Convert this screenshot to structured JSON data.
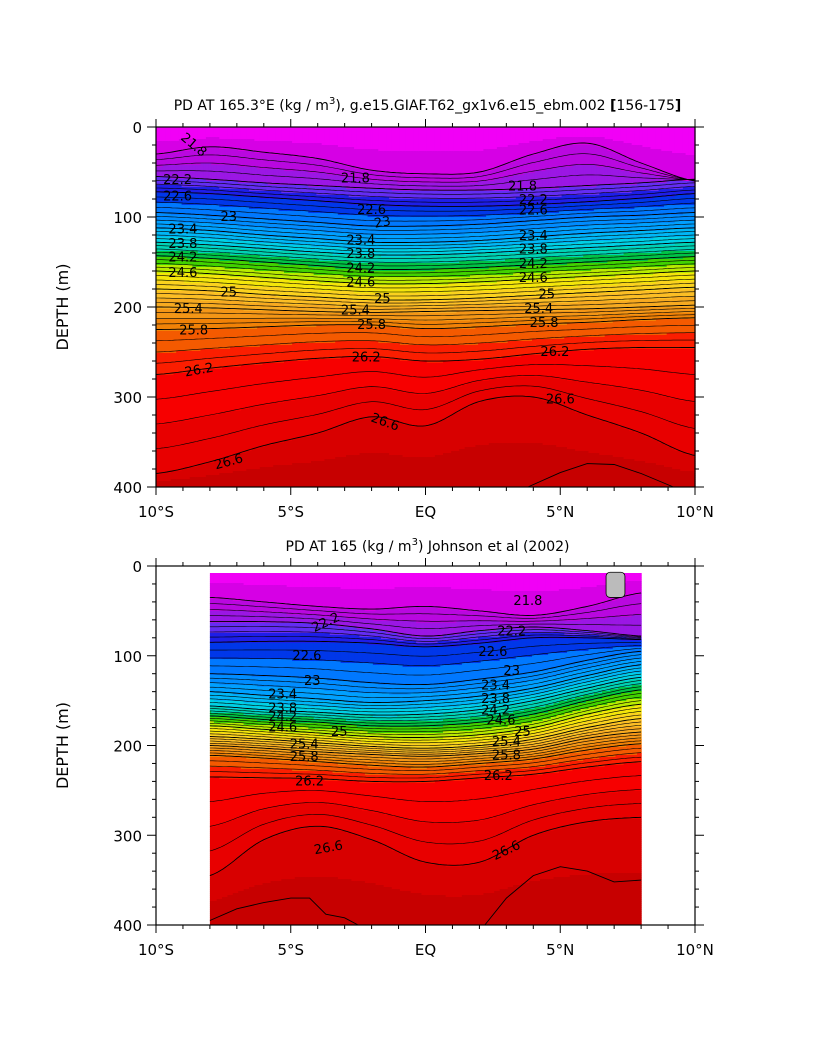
{
  "chart_data": [
    {
      "type": "heatmap",
      "variant": "filled-contour",
      "title": "PD AT 165.3°E (kg / m³), g.e15.GIAF.T62_gx1v6.e15_ebm.002 [156-175]",
      "title_parts": {
        "pre": "PD AT 165.3°E (kg / m",
        "sup": "3",
        "post": "), g.e15.GIAF.T62_gx1v6.e15_ebm.002 ",
        "range": "156-175"
      },
      "xlabel": "",
      "ylabel": "DEPTH (m)",
      "xlim": [
        -10,
        10
      ],
      "ylim": [
        400,
        0
      ],
      "y_inverted": true,
      "x_ticks": [
        {
          "v": -10,
          "label": "10°S"
        },
        {
          "v": -5,
          "label": "5°S"
        },
        {
          "v": 0,
          "label": "EQ"
        },
        {
          "v": 5,
          "label": "5°N"
        },
        {
          "v": 10,
          "label": "10°N"
        }
      ],
      "y_ticks": [
        {
          "v": 0,
          "label": "0"
        },
        {
          "v": 100,
          "label": "100"
        },
        {
          "v": 200,
          "label": "200"
        },
        {
          "v": 300,
          "label": "300"
        },
        {
          "v": 400,
          "label": "400"
        }
      ],
      "data_xrange": [
        -10,
        10
      ],
      "contour_interval": 0.2,
      "level_range": [
        21.4,
        27.0
      ],
      "profile_lat": [
        -10,
        -8,
        -6,
        -4,
        -2,
        0,
        2,
        4,
        6,
        8,
        10
      ],
      "profile_levels": [
        21.8,
        22.2,
        22.6,
        23.0,
        23.4,
        23.8,
        24.2,
        24.6,
        25.0,
        25.4,
        25.8,
        26.2,
        26.6
      ],
      "contour_depths": [
        [
          30,
          22,
          28,
          35,
          48,
          52,
          50,
          30,
          18,
          40,
          60
        ],
        [
          55,
          58,
          62,
          65,
          68,
          70,
          70,
          68,
          65,
          62,
          58
        ],
        [
          72,
          74,
          78,
          82,
          86,
          88,
          88,
          86,
          83,
          79,
          74
        ],
        [
          95,
          98,
          102,
          106,
          110,
          110,
          108,
          104,
          100,
          98,
          95
        ],
        [
          112,
          115,
          120,
          124,
          128,
          128,
          126,
          122,
          118,
          115,
          112
        ],
        [
          128,
          131,
          135,
          139,
          142,
          142,
          140,
          137,
          134,
          131,
          128
        ],
        [
          143,
          146,
          150,
          154,
          158,
          158,
          156,
          153,
          150,
          147,
          144
        ],
        [
          160,
          163,
          167,
          171,
          174,
          174,
          172,
          169,
          166,
          163,
          160
        ],
        [
          180,
          182,
          186,
          189,
          192,
          192,
          190,
          187,
          184,
          181,
          178
        ],
        [
          200,
          201,
          203,
          205,
          206,
          205,
          204,
          203,
          202,
          200,
          198
        ],
        [
          225,
          224,
          222,
          220,
          220,
          224,
          222,
          219,
          217,
          214,
          212
        ],
        [
          275,
          268,
          262,
          257,
          255,
          260,
          258,
          252,
          247,
          245,
          245
        ],
        [
          385,
          372,
          354,
          340,
          322,
          332,
          305,
          300,
          320,
          340,
          365
        ]
      ],
      "bottom_contour": {
        "level": 27.0,
        "lat": [
          3.8,
          5,
          6,
          7,
          8,
          9.2
        ],
        "depth": [
          400,
          384,
          374,
          375,
          385,
          400
        ]
      },
      "contour_labels": [
        {
          "text": "21.8",
          "lat": -8.6,
          "depth": 20,
          "rot": 40
        },
        {
          "text": "21.8",
          "lat": -2.6,
          "depth": 57,
          "rot": 0
        },
        {
          "text": "21.8",
          "lat": 3.6,
          "depth": 66,
          "rot": 0
        },
        {
          "text": "22.2",
          "lat": -9.2,
          "depth": 59,
          "rot": 0
        },
        {
          "text": "22.2",
          "lat": 4.0,
          "depth": 81,
          "rot": 0
        },
        {
          "text": "22.6",
          "lat": -9.2,
          "depth": 77,
          "rot": 0
        },
        {
          "text": "22.6",
          "lat": -2.0,
          "depth": 92,
          "rot": 0
        },
        {
          "text": "22.6",
          "lat": 4.0,
          "depth": 93,
          "rot": 0
        },
        {
          "text": "23",
          "lat": -7.3,
          "depth": 100,
          "rot": 0
        },
        {
          "text": "23",
          "lat": -1.6,
          "depth": 106,
          "rot": -10
        },
        {
          "text": "23.4",
          "lat": -9.0,
          "depth": 114,
          "rot": 0
        },
        {
          "text": "23.4",
          "lat": -2.4,
          "depth": 126,
          "rot": 0
        },
        {
          "text": "23.4",
          "lat": 4.0,
          "depth": 121,
          "rot": 0
        },
        {
          "text": "23.8",
          "lat": -9.0,
          "depth": 130,
          "rot": 0
        },
        {
          "text": "23.8",
          "lat": -2.4,
          "depth": 141,
          "rot": 0
        },
        {
          "text": "23.8",
          "lat": 4.0,
          "depth": 136,
          "rot": 0
        },
        {
          "text": "24.2",
          "lat": -9.0,
          "depth": 145,
          "rot": 0
        },
        {
          "text": "24.2",
          "lat": -2.4,
          "depth": 157,
          "rot": 0
        },
        {
          "text": "24.2",
          "lat": 4.0,
          "depth": 152,
          "rot": 0
        },
        {
          "text": "24.6",
          "lat": -9.0,
          "depth": 162,
          "rot": 0
        },
        {
          "text": "24.6",
          "lat": -2.4,
          "depth": 173,
          "rot": 0
        },
        {
          "text": "24.6",
          "lat": 4.0,
          "depth": 168,
          "rot": 0
        },
        {
          "text": "25",
          "lat": -7.3,
          "depth": 184,
          "rot": 0
        },
        {
          "text": "25",
          "lat": -1.6,
          "depth": 191,
          "rot": 0
        },
        {
          "text": "25",
          "lat": 4.5,
          "depth": 186,
          "rot": 0
        },
        {
          "text": "25.4",
          "lat": -8.8,
          "depth": 202,
          "rot": 0
        },
        {
          "text": "25.4",
          "lat": -2.6,
          "depth": 204,
          "rot": 0
        },
        {
          "text": "25.4",
          "lat": 4.2,
          "depth": 202,
          "rot": 0
        },
        {
          "text": "25.8",
          "lat": -8.6,
          "depth": 226,
          "rot": 0
        },
        {
          "text": "25.8",
          "lat": -2.0,
          "depth": 220,
          "rot": 0
        },
        {
          "text": "25.8",
          "lat": 4.4,
          "depth": 218,
          "rot": 0
        },
        {
          "text": "26.2",
          "lat": -8.4,
          "depth": 270,
          "rot": -10
        },
        {
          "text": "26.2",
          "lat": -2.2,
          "depth": 256,
          "rot": 0
        },
        {
          "text": "26.2",
          "lat": 4.8,
          "depth": 250,
          "rot": 0
        },
        {
          "text": "26.6",
          "lat": -7.3,
          "depth": 372,
          "rot": -15
        },
        {
          "text": "26.6",
          "lat": -1.5,
          "depth": 328,
          "rot": 20
        },
        {
          "text": "26.6",
          "lat": 5.0,
          "depth": 303,
          "rot": 0
        }
      ]
    },
    {
      "type": "heatmap",
      "variant": "filled-contour",
      "title": "PD AT 165 (kg / m³) Johnson et al (2002)",
      "title_parts": {
        "pre": "PD AT 165 (kg / m",
        "sup": "3",
        "post": ") Johnson et al (2002)",
        "range": ""
      },
      "xlabel": "",
      "ylabel": "DEPTH (m)",
      "xlim": [
        -10,
        10
      ],
      "ylim": [
        400,
        0
      ],
      "y_inverted": true,
      "x_ticks": [
        {
          "v": -10,
          "label": "10°S"
        },
        {
          "v": -5,
          "label": "5°S"
        },
        {
          "v": 0,
          "label": "EQ"
        },
        {
          "v": 5,
          "label": "5°N"
        },
        {
          "v": 10,
          "label": "10°N"
        }
      ],
      "y_ticks": [
        {
          "v": 0,
          "label": "0"
        },
        {
          "v": 100,
          "label": "100"
        },
        {
          "v": 200,
          "label": "200"
        },
        {
          "v": 300,
          "label": "300"
        },
        {
          "v": 400,
          "label": "400"
        }
      ],
      "data_xrange": [
        -8,
        8
      ],
      "data_top_depth": 7,
      "contour_interval": 0.2,
      "level_range": [
        21.4,
        27.0
      ],
      "profile_lat": [
        -8,
        -6,
        -4,
        -2,
        0,
        2,
        4,
        6,
        8
      ],
      "profile_levels": [
        21.8,
        22.2,
        22.6,
        23.0,
        23.4,
        23.8,
        24.2,
        24.6,
        25.0,
        25.4,
        25.8,
        26.2,
        26.6
      ],
      "contour_depths": [
        [
          35,
          40,
          45,
          48,
          45,
          50,
          55,
          45,
          30
        ],
        [
          62,
          62,
          64,
          70,
          78,
          72,
          68,
          72,
          78
        ],
        [
          85,
          84,
          84,
          86,
          90,
          86,
          80,
          80,
          82
        ],
        [
          120,
          122,
          125,
          130,
          132,
          126,
          118,
          105,
          95
        ],
        [
          140,
          144,
          148,
          152,
          150,
          145,
          136,
          122,
          110
        ],
        [
          156,
          160,
          163,
          166,
          165,
          160,
          150,
          136,
          124
        ],
        [
          167,
          171,
          174,
          178,
          178,
          174,
          165,
          150,
          138
        ],
        [
          178,
          182,
          186,
          190,
          191,
          188,
          180,
          165,
          154
        ],
        [
          190,
          193,
          197,
          201,
          203,
          200,
          193,
          180,
          170
        ],
        [
          200,
          203,
          207,
          210,
          212,
          209,
          204,
          192,
          185
        ],
        [
          211,
          214,
          218,
          222,
          224,
          220,
          215,
          205,
          198
        ],
        [
          235,
          236,
          237,
          240,
          240,
          236,
          232,
          224,
          218
        ],
        [
          345,
          305,
          290,
          305,
          330,
          330,
          300,
          285,
          280
        ]
      ],
      "bottom_contour": {
        "level": 27.0,
        "lat": [
          -8,
          -7,
          -6,
          -5,
          -4.3,
          -3.7,
          -3,
          -2.5
        ],
        "depth": [
          395,
          382,
          375,
          370,
          370,
          388,
          392,
          400
        ]
      },
      "bottom_contour_2": {
        "level": 27.0,
        "lat": [
          2.2,
          3,
          4,
          5,
          6,
          7,
          8
        ],
        "depth": [
          400,
          370,
          345,
          335,
          340,
          352,
          350
        ]
      },
      "missing_patch": {
        "lat": [
          6.7,
          7.4
        ],
        "depth": [
          0,
          35
        ]
      },
      "contour_labels": [
        {
          "text": "21.8",
          "lat": 3.8,
          "depth": 39,
          "rot": 0
        },
        {
          "text": "22.2",
          "lat": -3.7,
          "depth": 63,
          "rot": -25
        },
        {
          "text": "22.2",
          "lat": 3.2,
          "depth": 73,
          "rot": 0
        },
        {
          "text": "22.6",
          "lat": -4.4,
          "depth": 100,
          "rot": 0
        },
        {
          "text": "22.6",
          "lat": 2.5,
          "depth": 96,
          "rot": 0
        },
        {
          "text": "23",
          "lat": -4.2,
          "depth": 128,
          "rot": 0
        },
        {
          "text": "23",
          "lat": 3.2,
          "depth": 117,
          "rot": 0
        },
        {
          "text": "23.4",
          "lat": -5.3,
          "depth": 143,
          "rot": 0
        },
        {
          "text": "23.4",
          "lat": 2.6,
          "depth": 133,
          "rot": 0
        },
        {
          "text": "23.8",
          "lat": -5.3,
          "depth": 159,
          "rot": 0
        },
        {
          "text": "23.8",
          "lat": 2.6,
          "depth": 148,
          "rot": 0
        },
        {
          "text": "24.2",
          "lat": -5.3,
          "depth": 168,
          "rot": 0
        },
        {
          "text": "24.2",
          "lat": 2.6,
          "depth": 161,
          "rot": 0
        },
        {
          "text": "24.6",
          "lat": -5.3,
          "depth": 180,
          "rot": 0
        },
        {
          "text": "24.6",
          "lat": 2.8,
          "depth": 172,
          "rot": 0
        },
        {
          "text": "25",
          "lat": -3.2,
          "depth": 185,
          "rot": 0
        },
        {
          "text": "25",
          "lat": 3.6,
          "depth": 185,
          "rot": 0
        },
        {
          "text": "25.4",
          "lat": -4.5,
          "depth": 199,
          "rot": 0
        },
        {
          "text": "25.4",
          "lat": 3.0,
          "depth": 196,
          "rot": 0
        },
        {
          "text": "25.8",
          "lat": -4.5,
          "depth": 213,
          "rot": 0
        },
        {
          "text": "25.8",
          "lat": 3.0,
          "depth": 211,
          "rot": 0
        },
        {
          "text": "26.2",
          "lat": -4.3,
          "depth": 240,
          "rot": 0
        },
        {
          "text": "26.2",
          "lat": 2.7,
          "depth": 234,
          "rot": 0
        },
        {
          "text": "26.6",
          "lat": -3.6,
          "depth": 314,
          "rot": -10
        },
        {
          "text": "26.6",
          "lat": 3.0,
          "depth": 317,
          "rot": -25
        }
      ]
    }
  ]
}
